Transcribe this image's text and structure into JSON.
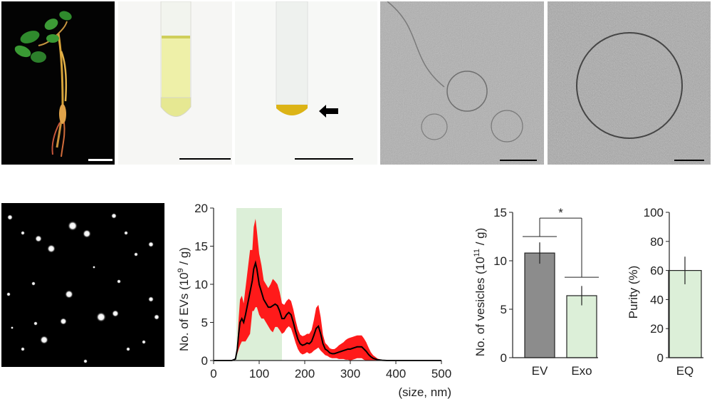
{
  "figure": {
    "panels": {
      "plant_photo": {
        "subject": "ginseng-plant"
      },
      "tube_before": {
        "subject": "yellow-supernatant-tube"
      },
      "tube_after": {
        "subject": "yellow-pellet-tube"
      },
      "tem_wide": {
        "subject": "cryo-tem-field"
      },
      "tem_zoom": {
        "subject": "cryo-tem-single-vesicle"
      },
      "nta_video": {
        "subject": "nta-particle-frame"
      }
    },
    "accent_colors": {
      "line": "#000000",
      "band": "#ff1a1a",
      "shade": "#dcefd8",
      "ev_bar": "#8c8c8c",
      "exo_bar": "#dcefd8"
    }
  },
  "chart_data": [
    {
      "type": "line",
      "name": "size-distribution",
      "ylabel_main": "No. of EVs (10",
      "ylabel_sup": "9",
      "ylabel_tail": " / g)",
      "xlabel": "(size, nm)",
      "xlim": [
        0,
        500
      ],
      "ylim": [
        0,
        20
      ],
      "xticks": [
        0,
        100,
        200,
        300,
        400,
        500
      ],
      "yticks": [
        0,
        5,
        10,
        15,
        20
      ],
      "highlight_range": [
        50,
        150
      ],
      "series": [
        {
          "name": "mean",
          "x": [
            0,
            40,
            48,
            52,
            55,
            58,
            62,
            66,
            70,
            75,
            80,
            85,
            88,
            92,
            95,
            100,
            105,
            110,
            115,
            120,
            125,
            130,
            135,
            140,
            145,
            150,
            155,
            160,
            165,
            170,
            175,
            180,
            185,
            190,
            195,
            200,
            205,
            210,
            215,
            220,
            225,
            230,
            235,
            240,
            245,
            250,
            255,
            260,
            265,
            270,
            275,
            280,
            285,
            290,
            295,
            300,
            305,
            310,
            315,
            320,
            325,
            330,
            335,
            340,
            345,
            350,
            360,
            370,
            380,
            400,
            500
          ],
          "y": [
            0,
            0,
            0.2,
            1.5,
            3.5,
            5.0,
            5.5,
            5.0,
            6.0,
            7.5,
            9.0,
            10.5,
            12.0,
            12.8,
            12.0,
            10.0,
            9.0,
            8.0,
            7.5,
            7.0,
            7.0,
            7.2,
            7.4,
            7.2,
            6.5,
            5.5,
            5.5,
            6.0,
            6.3,
            6.0,
            5.0,
            3.8,
            2.8,
            2.2,
            2.0,
            2.1,
            2.3,
            2.2,
            2.5,
            3.3,
            4.2,
            4.5,
            3.5,
            2.2,
            1.5,
            1.3,
            1.0,
            0.9,
            0.9,
            1.0,
            1.1,
            1.2,
            1.3,
            1.4,
            1.5,
            1.5,
            1.6,
            1.7,
            1.8,
            1.8,
            1.8,
            1.5,
            1.2,
            0.8,
            0.5,
            0.3,
            0.1,
            0.03,
            0,
            0,
            0
          ],
          "err": [
            0,
            0,
            0.1,
            0.6,
            2.0,
            3.0,
            3.0,
            2.5,
            3.5,
            4.5,
            5.5,
            4.0,
            5.5,
            5.8,
            5.0,
            4.0,
            3.5,
            2.5,
            2.5,
            2.5,
            3.0,
            3.5,
            3.0,
            2.8,
            2.5,
            2.0,
            1.8,
            1.8,
            1.8,
            1.8,
            1.7,
            1.5,
            1.3,
            1.2,
            1.2,
            1.2,
            1.2,
            1.3,
            1.5,
            2.0,
            2.7,
            2.8,
            2.2,
            1.2,
            0.8,
            0.7,
            0.6,
            0.6,
            0.6,
            0.7,
            0.9,
            1.0,
            1.1,
            1.3,
            1.4,
            1.5,
            1.5,
            1.5,
            1.5,
            1.5,
            1.5,
            1.4,
            1.2,
            0.9,
            0.6,
            0.4,
            0.15,
            0.05,
            0,
            0,
            0
          ]
        }
      ]
    },
    {
      "type": "bar",
      "name": "vesicle-count",
      "categories": [
        "EV",
        "Exo"
      ],
      "values": [
        10.8,
        6.4
      ],
      "errors": [
        1.1,
        1.0
      ],
      "ylabel_main": "No. of vesicles (10",
      "ylabel_sup": "11",
      "ylabel_tail": " / g)",
      "ylim": [
        0,
        15
      ],
      "yticks": [
        0,
        5,
        10,
        15
      ],
      "significance": "*",
      "colors": [
        "#8c8c8c",
        "#dcefd8"
      ]
    },
    {
      "type": "bar",
      "name": "purity",
      "categories": [
        "EQ"
      ],
      "values": [
        60
      ],
      "errors": [
        9.5
      ],
      "ylabel": "Purity (%)",
      "ylim": [
        0,
        100
      ],
      "yticks": [
        0,
        20,
        40,
        60,
        80,
        100
      ],
      "colors": [
        "#dcefd8"
      ]
    }
  ]
}
